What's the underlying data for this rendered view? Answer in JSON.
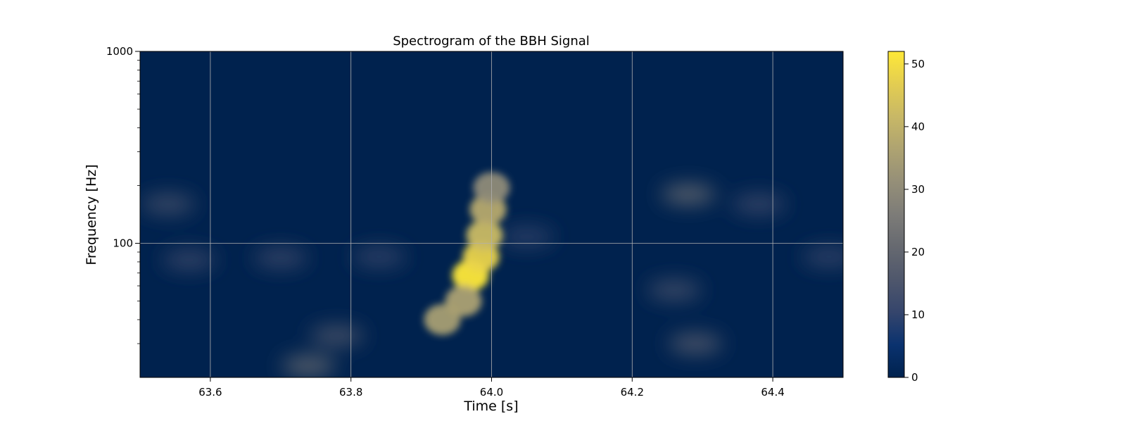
{
  "chart_data": {
    "type": "heatmap",
    "title": "Spectrogram of the BBH Signal",
    "xlabel": "Time [s]",
    "ylabel": "Frequency [Hz]",
    "xlim": [
      63.5,
      64.5
    ],
    "ylim": [
      20,
      1000
    ],
    "y_scale": "log",
    "grid": true,
    "x_ticks": [
      63.6,
      63.8,
      64.0,
      64.2,
      64.4
    ],
    "x_tick_labels": [
      "63.6",
      "63.8",
      "64.0",
      "64.2",
      "64.4"
    ],
    "y_ticks": [
      100,
      1000
    ],
    "y_tick_labels": [
      "100",
      "1000"
    ],
    "colormap": "cividis",
    "colorbar": {
      "range": [
        0,
        52
      ],
      "ticks": [
        0,
        10,
        20,
        30,
        40,
        50
      ],
      "tick_labels": [
        "0",
        "10",
        "20",
        "30",
        "40",
        "50"
      ]
    },
    "features": [
      {
        "t": 63.97,
        "f": 68,
        "value": 52
      },
      {
        "t": 63.985,
        "f": 85,
        "value": 48
      },
      {
        "t": 63.99,
        "f": 110,
        "value": 42
      },
      {
        "t": 63.995,
        "f": 150,
        "value": 38
      },
      {
        "t": 64.0,
        "f": 195,
        "value": 30
      },
      {
        "t": 63.93,
        "f": 40,
        "value": 35
      },
      {
        "t": 63.96,
        "f": 50,
        "value": 36
      },
      {
        "t": 63.74,
        "f": 23,
        "value": 22
      },
      {
        "t": 63.78,
        "f": 33,
        "value": 16
      },
      {
        "t": 64.28,
        "f": 180,
        "value": 22
      },
      {
        "t": 64.29,
        "f": 30,
        "value": 18
      },
      {
        "t": 64.26,
        "f": 57,
        "value": 14
      },
      {
        "t": 63.54,
        "f": 160,
        "value": 14
      },
      {
        "t": 63.57,
        "f": 82,
        "value": 12
      },
      {
        "t": 63.7,
        "f": 84,
        "value": 12
      },
      {
        "t": 63.84,
        "f": 85,
        "value": 11
      },
      {
        "t": 64.38,
        "f": 160,
        "value": 12
      },
      {
        "t": 64.48,
        "f": 85,
        "value": 11
      },
      {
        "t": 64.05,
        "f": 108,
        "value": 10
      }
    ],
    "colors": {
      "background": "#00224e",
      "grid": "#b0b0b0",
      "peak": "#fde737"
    }
  }
}
